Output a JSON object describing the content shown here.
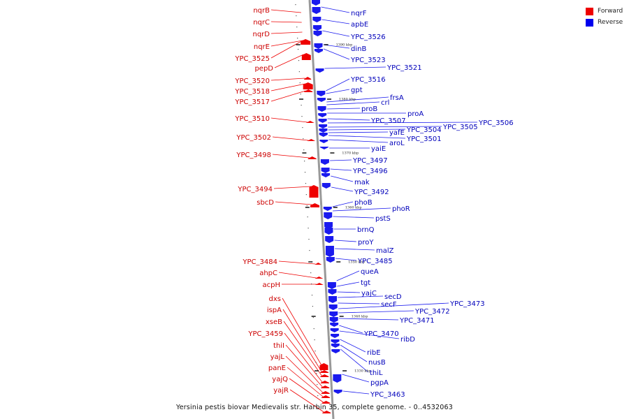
{
  "caption": "Yersinia pestis biovar Medievalis str. Harbin 35, complete genome. - 0..4532063",
  "legend": [
    {
      "label": "Forward",
      "color": "#ee0000"
    },
    {
      "label": "Reverse",
      "color": "#0000ee"
    }
  ],
  "colors": {
    "forward": "#ee0000",
    "reverse": "#1a1aee",
    "forward_text": "#cc0000",
    "reverse_text": "#0000bb",
    "backbone": "#999999"
  },
  "ticks": [
    "1390 kbp",
    "1380 kbp",
    "1370 kbp",
    "1360 kbp",
    "1350 kbp",
    "1340 kbp",
    "1330 kbp"
  ],
  "forward_genes": [
    "nqrB",
    "nqrC",
    "nqrD",
    "nqrE",
    "YPC_3525",
    "pepD",
    "YPC_3520",
    "YPC_3518",
    "YPC_3517",
    "YPC_3510",
    "YPC_3502",
    "YPC_3498",
    "YPC_3494",
    "sbcD",
    "YPC_3484",
    "ahpC",
    "acpH",
    "dxs",
    "ispA",
    "xseB",
    "YPC_3459",
    "thiI",
    "yajL",
    "panE",
    "yajQ",
    "yajR"
  ],
  "reverse_genes": [
    "nqrF",
    "apbE",
    "YPC_3526",
    "dinB",
    "YPC_3523",
    "YPC_3521",
    "YPC_3516",
    "gpt",
    "frsA",
    "crl",
    "proB",
    "proA",
    "YPC_3507",
    "YPC_3506",
    "YPC_3505",
    "YPC_3504",
    "yafE",
    "YPC_3501",
    "aroL",
    "yaiE",
    "YPC_3497",
    "YPC_3496",
    "mak",
    "YPC_3492",
    "phoB",
    "phoR",
    "pstS",
    "brnQ",
    "proY",
    "malZ",
    "YPC_3485",
    "queA",
    "tgt",
    "yajC",
    "secD",
    "secF",
    "YPC_3473",
    "YPC_3472",
    "YPC_3471",
    "YPC_3470",
    "ribD",
    "ribE",
    "nusB",
    "thiL",
    "pgpA",
    "YPC_3463"
  ]
}
